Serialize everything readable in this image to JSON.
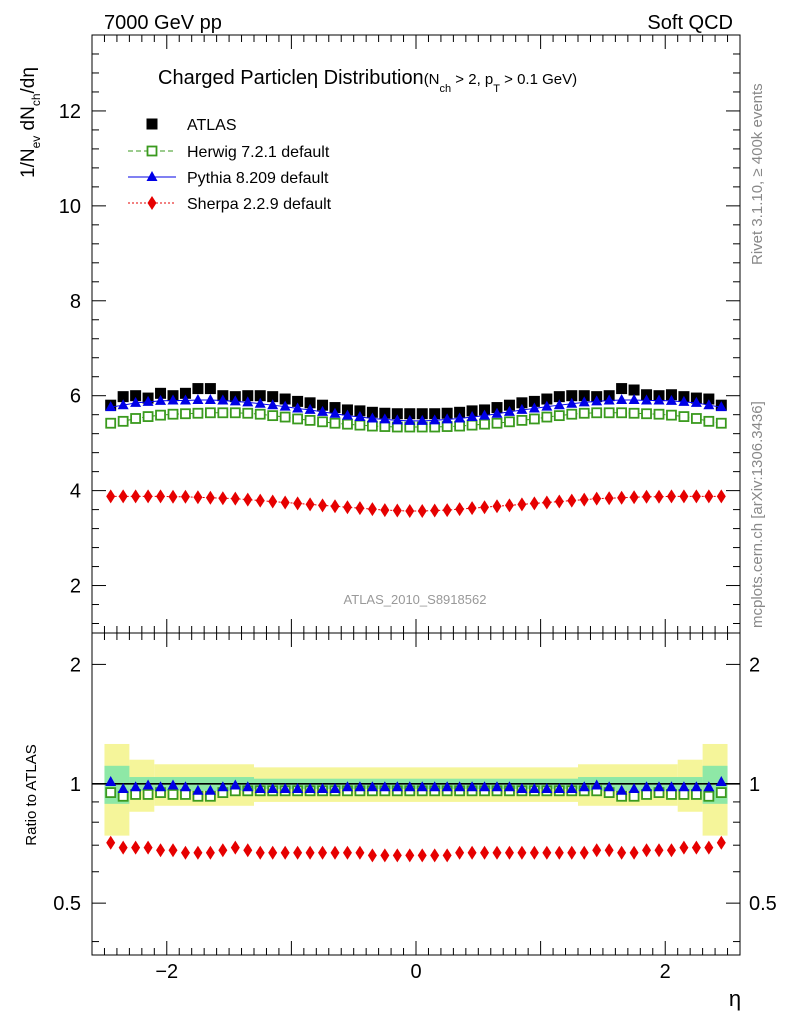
{
  "header": {
    "left": "7000 GeV pp",
    "right": "Soft QCD"
  },
  "side": {
    "rivet": "Rivet 3.1.10, ≥ 400k events",
    "mcplots": "mcplots.cern.ch [arXiv:1306.3436]"
  },
  "analysis_id": "ATLAS_2010_S8918562",
  "chart_data": [
    {
      "type": "scatter",
      "panel": "main",
      "title": "Charged Particleη Distribution",
      "title_cuts": {
        "open": "(N",
        "ch": "ch",
        "mid": " > 2, p",
        "t": "T",
        "close": " > 0.1 GeV)"
      },
      "ylabel": {
        "a": "1/N",
        "ev": "ev",
        "b": " dN",
        "ch": "ch",
        "c": "/dη"
      },
      "xlim": [
        -2.6,
        2.6
      ],
      "ylim": [
        1.0,
        13.6
      ],
      "yticks": [
        {
          "v": 2,
          "label": "2"
        },
        {
          "v": 4,
          "label": "4"
        },
        {
          "v": 6,
          "label": "6"
        },
        {
          "v": 8,
          "label": "8"
        },
        {
          "v": 10,
          "label": "10"
        },
        {
          "v": 12,
          "label": "12"
        }
      ],
      "x": [
        -2.45,
        -2.35,
        -2.25,
        -2.15,
        -2.05,
        -1.95,
        -1.85,
        -1.75,
        -1.65,
        -1.55,
        -1.45,
        -1.35,
        -1.25,
        -1.15,
        -1.05,
        -0.95,
        -0.85,
        -0.75,
        -0.65,
        -0.55,
        -0.45,
        -0.35,
        -0.25,
        -0.15,
        -0.05,
        0.05,
        0.15,
        0.25,
        0.35,
        0.45,
        0.55,
        0.65,
        0.75,
        0.85,
        0.95,
        1.05,
        1.15,
        1.25,
        1.35,
        1.45,
        1.55,
        1.65,
        1.75,
        1.85,
        1.95,
        2.05,
        2.15,
        2.25,
        2.35,
        2.45
      ],
      "series": [
        {
          "name": "ATLAS",
          "color": "#000000",
          "marker": "square",
          "values": [
            5.8,
            5.98,
            6.0,
            5.95,
            6.05,
            6.0,
            6.05,
            6.15,
            6.15,
            6.0,
            5.98,
            6.0,
            6.0,
            5.98,
            5.93,
            5.88,
            5.85,
            5.8,
            5.75,
            5.7,
            5.68,
            5.65,
            5.63,
            5.62,
            5.62,
            5.62,
            5.62,
            5.63,
            5.65,
            5.68,
            5.7,
            5.75,
            5.8,
            5.85,
            5.88,
            5.93,
            5.98,
            6.0,
            6.0,
            5.98,
            6.0,
            6.15,
            6.12,
            6.02,
            6.0,
            6.02,
            5.98,
            5.95,
            5.93,
            5.8
          ]
        },
        {
          "name": "Herwig 7.2.1 default",
          "color": "#3a9a1e",
          "marker": "open-square",
          "line": "dashed",
          "values": [
            5.42,
            5.46,
            5.52,
            5.56,
            5.59,
            5.61,
            5.62,
            5.63,
            5.64,
            5.64,
            5.64,
            5.63,
            5.61,
            5.58,
            5.55,
            5.51,
            5.48,
            5.45,
            5.42,
            5.4,
            5.38,
            5.36,
            5.35,
            5.34,
            5.34,
            5.34,
            5.34,
            5.35,
            5.36,
            5.38,
            5.4,
            5.42,
            5.45,
            5.48,
            5.51,
            5.55,
            5.58,
            5.61,
            5.63,
            5.64,
            5.64,
            5.64,
            5.63,
            5.62,
            5.61,
            5.59,
            5.56,
            5.52,
            5.46,
            5.42
          ]
        },
        {
          "name": "Pythia 8.209 default",
          "color": "#0000e6",
          "marker": "triangle",
          "line": "solid",
          "values": [
            5.76,
            5.8,
            5.85,
            5.87,
            5.89,
            5.9,
            5.9,
            5.91,
            5.91,
            5.9,
            5.88,
            5.86,
            5.83,
            5.8,
            5.77,
            5.73,
            5.7,
            5.66,
            5.62,
            5.58,
            5.55,
            5.52,
            5.5,
            5.48,
            5.47,
            5.47,
            5.48,
            5.5,
            5.52,
            5.55,
            5.58,
            5.62,
            5.66,
            5.7,
            5.73,
            5.77,
            5.8,
            5.83,
            5.86,
            5.88,
            5.9,
            5.91,
            5.91,
            5.9,
            5.9,
            5.89,
            5.87,
            5.85,
            5.8,
            5.76
          ]
        },
        {
          "name": "Sherpa 2.2.9 default",
          "color": "#e60000",
          "marker": "diamond",
          "line": "dotted",
          "values": [
            3.88,
            3.88,
            3.88,
            3.88,
            3.88,
            3.87,
            3.87,
            3.86,
            3.85,
            3.84,
            3.83,
            3.81,
            3.79,
            3.77,
            3.75,
            3.73,
            3.71,
            3.69,
            3.67,
            3.65,
            3.63,
            3.61,
            3.59,
            3.58,
            3.57,
            3.57,
            3.58,
            3.59,
            3.61,
            3.63,
            3.65,
            3.67,
            3.69,
            3.71,
            3.73,
            3.75,
            3.77,
            3.79,
            3.81,
            3.83,
            3.84,
            3.85,
            3.86,
            3.87,
            3.87,
            3.88,
            3.88,
            3.88,
            3.88,
            3.88
          ]
        }
      ]
    },
    {
      "type": "scatter",
      "panel": "ratio",
      "ylabel": "Ratio to ATLAS",
      "xlabel": "η",
      "scale": "log",
      "xlim": [
        -2.6,
        2.6
      ],
      "ylim": [
        0.37,
        2.4
      ],
      "yticks": [
        {
          "v": 0.5,
          "label": "0.5"
        },
        {
          "v": 1,
          "label": "1"
        },
        {
          "v": 2,
          "label": "2"
        }
      ],
      "xticks": [
        {
          "v": -2,
          "label": "−2"
        },
        {
          "v": 0,
          "label": "0"
        },
        {
          "v": 2,
          "label": "2"
        }
      ],
      "bands": {
        "stat": {
          "color": "#8ee8a6",
          "bins": [
            [
              -2.5,
              -2.3,
              0.11
            ],
            [
              -2.3,
              -1.3,
              0.04
            ],
            [
              -1.3,
              1.3,
              0.03
            ],
            [
              1.3,
              2.3,
              0.04
            ],
            [
              2.3,
              2.5,
              0.11
            ]
          ]
        },
        "total": {
          "color": "#f5f59a",
          "bins": [
            [
              -2.5,
              -2.3,
              0.26
            ],
            [
              -2.3,
              -2.1,
              0.15
            ],
            [
              -2.1,
              -1.3,
              0.12
            ],
            [
              -1.3,
              1.3,
              0.1
            ],
            [
              1.3,
              2.1,
              0.12
            ],
            [
              2.1,
              2.3,
              0.15
            ],
            [
              2.3,
              2.5,
              0.26
            ]
          ]
        }
      },
      "series": [
        {
          "name": "Herwig 7.2.1 default",
          "color": "#3a9a1e",
          "marker": "open-square",
          "values": [
            0.95,
            0.93,
            0.94,
            0.94,
            0.95,
            0.94,
            0.94,
            0.93,
            0.93,
            0.95,
            0.96,
            0.96,
            0.96,
            0.96,
            0.96,
            0.96,
            0.96,
            0.96,
            0.96,
            0.96,
            0.96,
            0.96,
            0.96,
            0.96,
            0.96,
            0.96,
            0.96,
            0.96,
            0.96,
            0.96,
            0.96,
            0.96,
            0.96,
            0.96,
            0.96,
            0.96,
            0.96,
            0.96,
            0.96,
            0.96,
            0.95,
            0.93,
            0.93,
            0.94,
            0.95,
            0.94,
            0.94,
            0.94,
            0.93,
            0.95
          ]
        },
        {
          "name": "Pythia 8.209 default",
          "color": "#0000e6",
          "marker": "triangle",
          "values": [
            1.01,
            0.97,
            0.98,
            0.99,
            0.98,
            0.99,
            0.98,
            0.96,
            0.96,
            0.98,
            0.99,
            0.98,
            0.97,
            0.97,
            0.97,
            0.97,
            0.97,
            0.97,
            0.97,
            0.98,
            0.98,
            0.98,
            0.98,
            0.98,
            0.98,
            0.98,
            0.98,
            0.98,
            0.98,
            0.98,
            0.98,
            0.98,
            0.98,
            0.97,
            0.97,
            0.97,
            0.97,
            0.97,
            0.98,
            0.99,
            0.98,
            0.96,
            0.97,
            0.98,
            0.98,
            0.98,
            0.98,
            0.98,
            0.98,
            1.01
          ]
        },
        {
          "name": "Sherpa 2.2.9 default",
          "color": "#e60000",
          "marker": "diamond",
          "values": [
            0.71,
            0.69,
            0.69,
            0.69,
            0.68,
            0.68,
            0.67,
            0.67,
            0.67,
            0.68,
            0.69,
            0.68,
            0.67,
            0.67,
            0.67,
            0.67,
            0.67,
            0.67,
            0.67,
            0.67,
            0.67,
            0.66,
            0.66,
            0.66,
            0.66,
            0.66,
            0.66,
            0.66,
            0.67,
            0.67,
            0.67,
            0.67,
            0.67,
            0.67,
            0.67,
            0.67,
            0.67,
            0.67,
            0.67,
            0.68,
            0.68,
            0.67,
            0.67,
            0.68,
            0.68,
            0.68,
            0.69,
            0.69,
            0.69,
            0.71
          ]
        }
      ]
    }
  ]
}
